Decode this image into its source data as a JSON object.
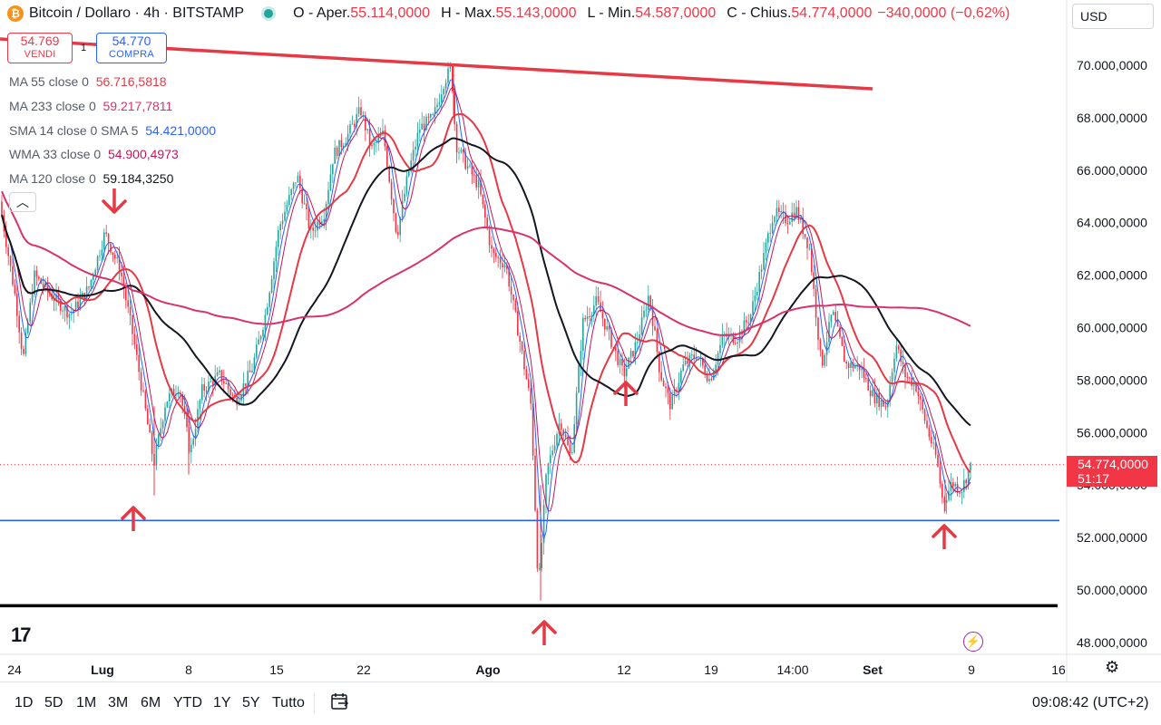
{
  "header": {
    "symbol_title": "Bitcoin / Dollaro · 4h · BITSTAMP",
    "btc_glyph": "₿",
    "ohlc": [
      {
        "label": "O",
        "prefix": "Aper.",
        "value": "55.114,0000"
      },
      {
        "label": "H",
        "prefix": "Max.",
        "value": "55.143,0000"
      },
      {
        "label": "L",
        "prefix": "Min.",
        "value": "54.587,0000"
      },
      {
        "label": "C",
        "prefix": "Chius.",
        "value": "54.774,0000"
      }
    ],
    "change": "−340,0000 (−0,62%)",
    "currency_select": "USD",
    "up_color": "#26a69a",
    "down_color": "#f23645"
  },
  "trade": {
    "sell_price": "54.769",
    "sell_label": "VENDI",
    "buy_price": "54.770",
    "buy_label": "COMPRA",
    "spread": "1"
  },
  "indicators": [
    {
      "name": "MA 55 close 0",
      "value": "56.716,5818",
      "color": "#e53946"
    },
    {
      "name": "MA 233 close 0",
      "value": "59.217,7811",
      "color": "#d6336c"
    },
    {
      "name": "SMA 14 close 0 SMA 5",
      "value": "54.421,0000",
      "color": "#2962ff"
    },
    {
      "name": "WMA 33 close 0",
      "value": "54.900,4973",
      "color": "#c2185b"
    },
    {
      "name": "MA 120 close 0",
      "value": "59.184,3250",
      "color": "#131722"
    }
  ],
  "collapse_glyph": "︿",
  "chart_data": {
    "type": "candlestick",
    "y_ticks": [
      "70.000,0000",
      "68.000,0000",
      "66.000,0000",
      "64.000,0000",
      "62.000,0000",
      "60.000,0000",
      "58.000,0000",
      "56.000,0000",
      "54.000,0000",
      "52.000,0000",
      "50.000,0000",
      "48.000,0000"
    ],
    "y_tick_values": [
      70000,
      68000,
      66000,
      64000,
      62000,
      60000,
      58000,
      56000,
      54000,
      52000,
      50000,
      48000
    ],
    "x_ticks": [
      "24",
      "Lug",
      "8",
      "15",
      "22",
      "Ago",
      "12",
      "19",
      "14:00",
      "Set",
      "9",
      "16"
    ],
    "ylim": [
      47600,
      71600
    ],
    "last_price": "54.774,0000",
    "countdown": "51:17",
    "support_levels": [
      52650,
      49400
    ],
    "trendline": {
      "from": 71000,
      "to": 69100
    }
  },
  "logo_text": "17",
  "bolt_glyph": "⚡",
  "gear_glyph": "⚙",
  "bottom": {
    "ranges": [
      "1D",
      "5D",
      "1M",
      "3M",
      "6M",
      "YTD",
      "1Y",
      "5Y",
      "Tutto"
    ],
    "clock": "09:08:42 (UTC+2)"
  }
}
